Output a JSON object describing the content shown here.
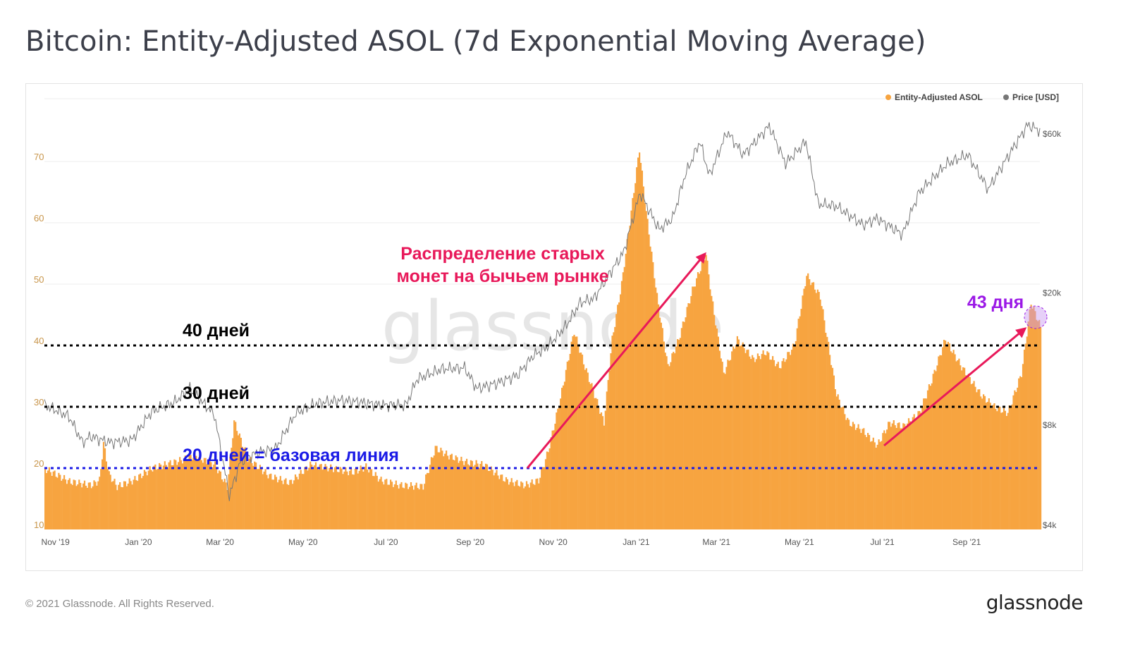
{
  "title": "Bitcoin: Entity-Adjusted ASOL (7d Exponential Moving Average)",
  "footer": "© 2021 Glassnode. All Rights Reserved.",
  "logo": "glassnode",
  "watermark": "glassnode",
  "chart_data": {
    "type": "bar+line",
    "x_ticks": [
      "Nov '19",
      "Jan '20",
      "Mar '20",
      "May '20",
      "Jul '20",
      "Sep '20",
      "Nov '20",
      "Jan '21",
      "Mar '21",
      "May '21",
      "Jul '21",
      "Sep '21"
    ],
    "x_tick_dates": [
      "2019-11-01",
      "2020-01-01",
      "2020-03-01",
      "2020-05-01",
      "2020-07-01",
      "2020-09-01",
      "2020-11-01",
      "2021-01-01",
      "2021-03-01",
      "2021-05-01",
      "2021-07-01",
      "2021-09-01"
    ],
    "xlim": [
      "2019-10-28",
      "2021-10-29"
    ],
    "y_left": {
      "ticks": [
        "10",
        "20",
        "30",
        "40",
        "50",
        "60",
        "70"
      ],
      "lim": [
        10,
        75
      ]
    },
    "y_right": {
      "ticks": [
        "$4k",
        "$8k",
        "$20k",
        "$60k"
      ],
      "tick_values": [
        4000,
        8000,
        20000,
        60000
      ],
      "scale": "log",
      "lim": [
        4000,
        75000
      ]
    },
    "grid": true,
    "legend": {
      "position": "top-right",
      "items": [
        {
          "label": "Entity-Adjusted ASOL",
          "color": "#f7a440"
        },
        {
          "label": "Price [USD]",
          "color": "#777777"
        }
      ]
    },
    "series": [
      {
        "name": "Entity-Adjusted ASOL",
        "type": "bar",
        "color": "#f7a440",
        "x": [
          "2019-10-28",
          "2019-11-15",
          "2019-12-01",
          "2019-12-07",
          "2019-12-10",
          "2019-12-14",
          "2019-12-20",
          "2020-01-01",
          "2020-01-15",
          "2020-02-01",
          "2020-02-15",
          "2020-03-01",
          "2020-03-10",
          "2020-03-15",
          "2020-03-25",
          "2020-04-10",
          "2020-04-25",
          "2020-05-10",
          "2020-05-25",
          "2020-06-10",
          "2020-06-20",
          "2020-07-01",
          "2020-07-15",
          "2020-08-01",
          "2020-08-10",
          "2020-08-20",
          "2020-09-01",
          "2020-09-15",
          "2020-10-01",
          "2020-10-15",
          "2020-10-25",
          "2020-11-01",
          "2020-11-10",
          "2020-11-20",
          "2020-11-28",
          "2020-12-05",
          "2020-12-12",
          "2020-12-18",
          "2020-12-25",
          "2021-01-01",
          "2021-01-07",
          "2021-01-12",
          "2021-01-20",
          "2021-01-28",
          "2021-02-05",
          "2021-02-15",
          "2021-02-25",
          "2021-03-01",
          "2021-03-10",
          "2021-03-20",
          "2021-04-01",
          "2021-04-10",
          "2021-04-20",
          "2021-05-01",
          "2021-05-10",
          "2021-05-20",
          "2021-06-01",
          "2021-06-10",
          "2021-06-20",
          "2021-07-01",
          "2021-07-10",
          "2021-07-20",
          "2021-08-01",
          "2021-08-10",
          "2021-08-20",
          "2021-09-01",
          "2021-09-15",
          "2021-09-25",
          "2021-10-05",
          "2021-10-15",
          "2021-10-22",
          "2021-10-29"
        ],
        "values": [
          19.9,
          17.8,
          17.2,
          18,
          24,
          19,
          17,
          18,
          20,
          21,
          22,
          20.5,
          17,
          27.6,
          21.6,
          18.7,
          17.6,
          20.5,
          20,
          19.3,
          20.2,
          18,
          17.2,
          17,
          23.3,
          22,
          21,
          20.5,
          18,
          17.2,
          18,
          22.8,
          31.4,
          42.3,
          36.5,
          32,
          27.4,
          41,
          50,
          61.8,
          72,
          61.8,
          48,
          36.5,
          41,
          49,
          55,
          48,
          35.4,
          41,
          37.7,
          38.9,
          36.5,
          40,
          51.5,
          48,
          32,
          27.4,
          26.2,
          23.7,
          27.4,
          26.8,
          29,
          34.3,
          41,
          36.5,
          32,
          30,
          29,
          35.4,
          47,
          43
        ]
      },
      {
        "name": "Price [USD]",
        "type": "line",
        "color": "#777777",
        "axis": "right",
        "x": [
          "2019-10-28",
          "2019-11-15",
          "2019-11-25",
          "2019-12-01",
          "2019-12-15",
          "2019-12-31",
          "2020-01-15",
          "2020-02-01",
          "2020-02-12",
          "2020-03-01",
          "2020-03-12",
          "2020-03-20",
          "2020-04-01",
          "2020-04-15",
          "2020-04-30",
          "2020-05-15",
          "2020-06-01",
          "2020-06-15",
          "2020-07-01",
          "2020-07-20",
          "2020-07-28",
          "2020-08-15",
          "2020-09-01",
          "2020-09-10",
          "2020-09-25",
          "2020-10-10",
          "2020-10-21",
          "2020-11-01",
          "2020-11-15",
          "2020-11-25",
          "2020-12-05",
          "2020-12-17",
          "2020-12-27",
          "2021-01-08",
          "2021-01-22",
          "2021-02-01",
          "2021-02-10",
          "2021-02-21",
          "2021-02-28",
          "2021-03-13",
          "2021-03-25",
          "2021-04-13",
          "2021-04-25",
          "2021-05-10",
          "2021-05-19",
          "2021-06-01",
          "2021-06-21",
          "2021-07-01",
          "2021-07-20",
          "2021-08-01",
          "2021-08-22",
          "2021-09-06",
          "2021-09-21",
          "2021-10-01",
          "2021-10-20",
          "2021-10-29"
        ],
        "values": [
          9200,
          8500,
          7100,
          7400,
          7100,
          7200,
          8800,
          9400,
          10300,
          8600,
          4900,
          6200,
          6600,
          6800,
          8700,
          9300,
          9500,
          9400,
          9200,
          9200,
          11000,
          11800,
          11900,
          10300,
          10700,
          11300,
          12900,
          13800,
          16000,
          18700,
          19200,
          23000,
          26500,
          40000,
          31000,
          33500,
          45000,
          57000,
          45000,
          61000,
          52000,
          63500,
          49000,
          57000,
          37000,
          36500,
          32000,
          33500,
          30000,
          40000,
          49000,
          52000,
          41000,
          48000,
          64000,
          61500
        ]
      }
    ],
    "annotations": {
      "line_40": "40 дней",
      "line_30": "30 дней",
      "line_20": "20 дней = базовая линия",
      "headline_1": "Распределение старых",
      "headline_2": "монет на бычьем рынке",
      "badge": "43 дня"
    }
  }
}
